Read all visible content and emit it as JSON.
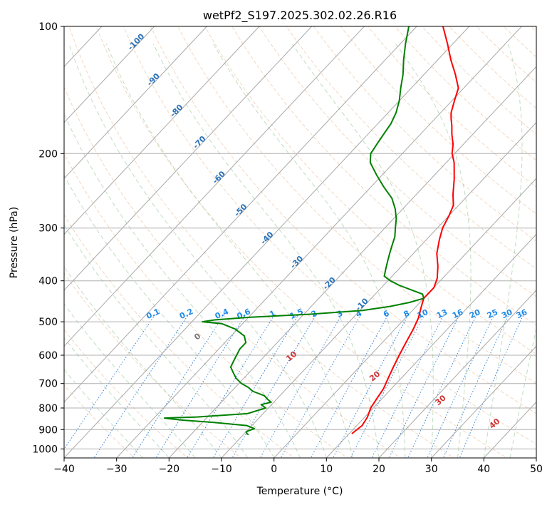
{
  "chart_data": {
    "type": "skew-t",
    "title": "wetPf2_S197.2025.302.02.26.R16",
    "xlabel": "Temperature (°C)",
    "ylabel": "Pressure (hPa)",
    "xlim": [
      -40,
      50
    ],
    "ylim": [
      1050,
      100
    ],
    "y_scale": "log",
    "grid": true,
    "x_ticks": [
      -40,
      -30,
      -20,
      -10,
      0,
      10,
      20,
      30,
      40,
      50
    ],
    "y_ticks": [
      1000,
      900,
      800,
      700,
      600,
      500,
      400,
      300,
      200,
      100
    ],
    "isotherm_labels": [
      -100,
      -90,
      -80,
      -70,
      -60,
      -50,
      -40,
      -30,
      -20,
      -10
    ],
    "mixing_ratio_labels": [
      "0.1",
      "0.2",
      "0.4",
      "0.6",
      "1",
      "1.5",
      "2",
      "3",
      "4",
      "6",
      "8",
      "10",
      "13",
      "16",
      "20",
      "25",
      "30",
      "36"
    ],
    "moist_adiabat_labels": [
      0,
      10,
      20,
      30,
      40
    ],
    "series": [
      {
        "color": "#ff0000",
        "pressure": [
          920,
          880,
          840,
          800,
          760,
          720,
          680,
          640,
          600,
          560,
          520,
          490,
          460,
          440,
          430,
          415,
          395,
          370,
          345,
          320,
          300,
          280,
          265,
          250,
          230,
          210,
          200,
          190,
          180,
          172,
          165,
          160,
          150,
          140,
          130,
          120,
          110,
          100
        ],
        "temperature": [
          10.5,
          11.0,
          10.5,
          9.5,
          9.0,
          8.5,
          7.5,
          6.5,
          5.5,
          4.5,
          3.5,
          2.5,
          1.0,
          0.0,
          0.0,
          0.0,
          -1.0,
          -3.0,
          -5.5,
          -7.5,
          -9.0,
          -10.0,
          -11.0,
          -13.0,
          -15.5,
          -18.5,
          -20.5,
          -22.0,
          -24.0,
          -25.5,
          -27.0,
          -28.0,
          -29.5,
          -31.0,
          -34.0,
          -37.5,
          -41.0,
          -45.0
        ]
      },
      {
        "color": "#008000",
        "pressure": [
          925,
          920,
          910,
          895,
          880,
          865,
          855,
          848,
          845,
          840,
          825,
          800,
          785,
          775,
          765,
          748,
          730,
          715,
          700,
          680,
          660,
          640,
          620,
          600,
          580,
          560,
          540,
          520,
          505,
          500,
          495,
          488,
          480,
          470,
          460,
          450,
          440,
          430,
          420,
          410,
          400,
          390,
          375,
          360,
          345,
          330,
          315,
          300,
          285,
          270,
          255,
          240,
          225,
          210,
          200,
          190,
          180,
          170,
          160,
          150,
          140,
          130,
          120,
          110,
          100
        ],
        "temperature": [
          -9.0,
          -9.5,
          -10.0,
          -9.0,
          -11.0,
          -18.0,
          -24.0,
          -27.0,
          -28.0,
          -22.0,
          -13.0,
          -10.5,
          -12.0,
          -10.5,
          -11.5,
          -13.0,
          -16.0,
          -17.5,
          -19.5,
          -21.5,
          -23.0,
          -24.5,
          -25.0,
          -25.5,
          -26.0,
          -26.0,
          -27.5,
          -30.5,
          -34.0,
          -38.0,
          -36.0,
          -30.0,
          -19.0,
          -9.5,
          -5.0,
          -2.0,
          0.0,
          -1.0,
          -4.0,
          -7.0,
          -9.5,
          -11.5,
          -12.5,
          -13.5,
          -14.5,
          -15.5,
          -16.5,
          -18.0,
          -19.5,
          -21.5,
          -24.0,
          -27.5,
          -31.0,
          -34.5,
          -36.0,
          -36.5,
          -37.0,
          -37.5,
          -38.5,
          -40.0,
          -42.0,
          -44.0,
          -46.5,
          -49.0,
          -51.5
        ]
      }
    ]
  }
}
